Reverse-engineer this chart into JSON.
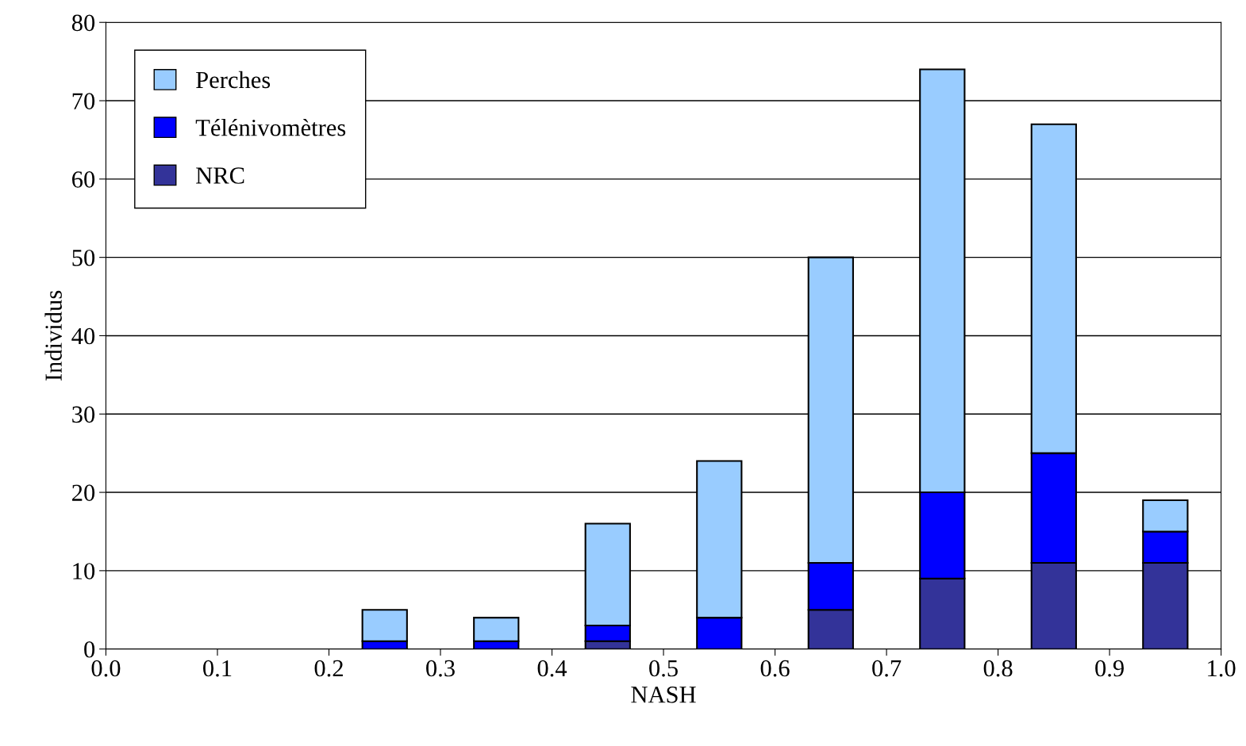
{
  "chart_data": {
    "type": "bar",
    "stacked": true,
    "xlabel": "NASH",
    "ylabel": "Individus",
    "x": [
      0.25,
      0.35,
      0.45,
      0.55,
      0.65,
      0.75,
      0.85,
      0.95
    ],
    "series": [
      {
        "name": "NRC",
        "color": "#333399",
        "values": [
          0,
          0,
          1,
          0,
          5,
          9,
          11,
          11
        ]
      },
      {
        "name": "Télénivomètres",
        "color": "#0000ff",
        "values": [
          1,
          1,
          2,
          4,
          6,
          11,
          14,
          4
        ]
      },
      {
        "name": "Perches",
        "color": "#99ccff",
        "values": [
          4,
          3,
          13,
          20,
          39,
          54,
          42,
          4
        ]
      }
    ],
    "xlim": [
      0,
      1
    ],
    "xticks": [
      {
        "value": 0,
        "label": "0.0"
      },
      {
        "value": 0.1,
        "label": "0.1"
      },
      {
        "value": 0.2,
        "label": "0.2"
      },
      {
        "value": 0.3,
        "label": "0.3"
      },
      {
        "value": 0.4,
        "label": "0.4"
      },
      {
        "value": 0.5,
        "label": "0.5"
      },
      {
        "value": 0.6,
        "label": "0.6"
      },
      {
        "value": 0.7,
        "label": "0.7"
      },
      {
        "value": 0.8,
        "label": "0.8"
      },
      {
        "value": 0.9,
        "label": "0.9"
      },
      {
        "value": 1,
        "label": "1.0"
      }
    ],
    "ylim": [
      0,
      80
    ],
    "yticks": [
      0,
      10,
      20,
      30,
      40,
      50,
      60,
      70,
      80
    ],
    "grid": "y",
    "legend": "top left"
  }
}
